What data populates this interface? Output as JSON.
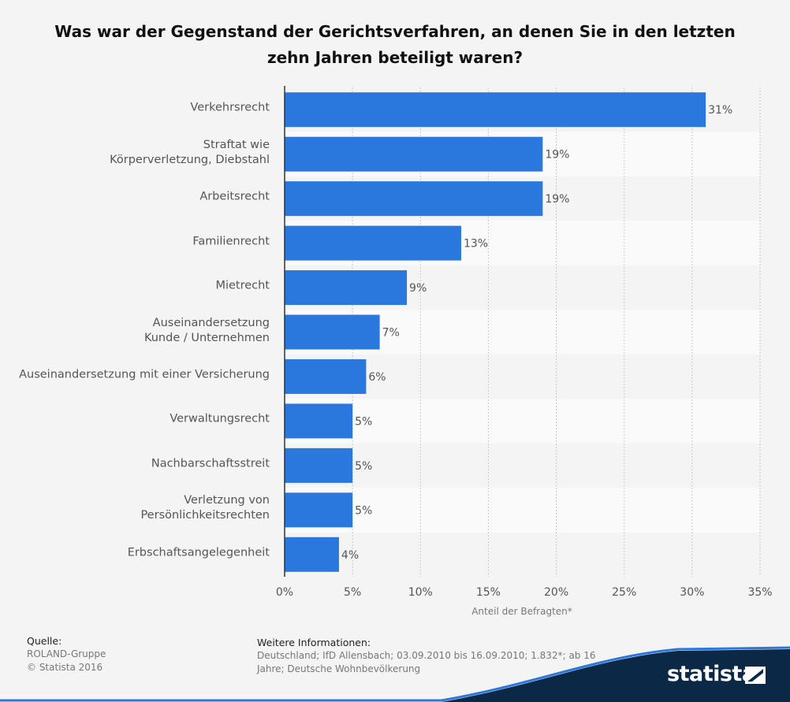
{
  "chart_data": {
    "type": "bar",
    "orientation": "horizontal",
    "title": "Was war der Gegenstand der Gerichtsverfahren, an denen Sie in den letzten zehn Jahren beteiligt waren?",
    "title_lines": [
      "Was war der Gegenstand der Gerichtsverfahren, an denen Sie in den letzten",
      "zehn Jahren beteiligt waren?"
    ],
    "categories": [
      [
        "Verkehrsrecht"
      ],
      [
        "Straftat wie",
        "Körperverletzung, Diebstahl"
      ],
      [
        "Arbeitsrecht"
      ],
      [
        "Familienrecht"
      ],
      [
        "Mietrecht"
      ],
      [
        "Auseinandersetzung",
        "Kunde / Unternehmen"
      ],
      [
        "Auseinandersetzung mit einer Versicherung"
      ],
      [
        "Verwaltungsrecht"
      ],
      [
        "Nachbarschaftsstreit"
      ],
      [
        "Verletzung von",
        "Persönlichkeitsrechten"
      ],
      [
        "Erbschaftsangelegenheit"
      ]
    ],
    "values": [
      31,
      19,
      19,
      13,
      9,
      7,
      6,
      5,
      5,
      5,
      4
    ],
    "value_labels": [
      "31%",
      "19%",
      "19%",
      "13%",
      "9%",
      "7%",
      "6%",
      "5%",
      "5%",
      "5%",
      "4%"
    ],
    "xlabel": "Anteil der Befragten*",
    "xlim": [
      0,
      35
    ],
    "xticks": [
      0,
      5,
      10,
      15,
      20,
      25,
      30,
      35
    ],
    "xtick_labels": [
      "0%",
      "5%",
      "10%",
      "15%",
      "20%",
      "25%",
      "30%",
      "35%"
    ],
    "bar_color": "#2a78de",
    "grid": true
  },
  "footer": {
    "source_head": "Quelle:",
    "source_line1": "ROLAND-Gruppe",
    "source_line2": "© Statista 2016",
    "info_head": "Weitere Informationen:",
    "info_line1": "Deutschland; IfD Allensbach; 03.09.2010 bis 16.09.2010; 1.832*; ab 16",
    "info_line2": "Jahre; Deutsche Wohnbevölkerung"
  },
  "brand": {
    "logo_text": "statista",
    "color": "#0b2947"
  }
}
